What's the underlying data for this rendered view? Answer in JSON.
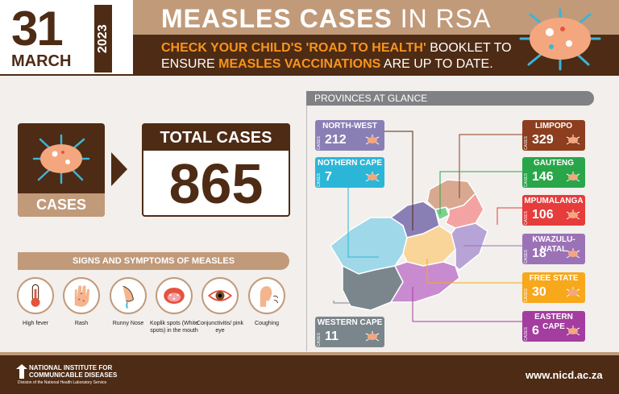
{
  "header": {
    "day": "31",
    "month": "MARCH",
    "year": "2023",
    "title_bold": "MEASLES CASES",
    "title_light": "IN RSA",
    "sub_line1_a": "CHECK YOUR CHILD'S 'ROAD TO HEALTH'",
    "sub_line1_b": " BOOKLET TO",
    "sub_line2_a": "ENSURE ",
    "sub_line2_b": "MEASLES VACCINATIONS",
    "sub_line2_c": " ARE UP TO DATE."
  },
  "cases": {
    "label": "CASES",
    "total_label": "TOTAL CASES",
    "total_value": "865"
  },
  "symptoms": {
    "title": "SIGNS AND SYMPTOMS OF MEASLES",
    "items": [
      {
        "label": "High fever",
        "icon": "thermometer-icon"
      },
      {
        "label": "Rash",
        "icon": "hand-rash-icon"
      },
      {
        "label": "Runny Nose",
        "icon": "nose-icon"
      },
      {
        "label": "Koplik spots (White spots) in the mouth",
        "icon": "mouth-icon"
      },
      {
        "label": "Conjunctivitis/ pink eye",
        "icon": "eye-icon"
      },
      {
        "label": "Coughing",
        "icon": "coughing-icon"
      }
    ]
  },
  "provinces": {
    "title": "PROVINCES AT GLANCE",
    "cases_word": "CASES",
    "items": [
      {
        "name": "NORTH-WEST",
        "count": "212",
        "color": "#8a7fb5"
      },
      {
        "name": "NOTHERN CAPE",
        "count": "7",
        "color": "#2bb6d8"
      },
      {
        "name": "WESTERN CAPE",
        "count": "11",
        "color": "#7a868c"
      },
      {
        "name": "LIMPOPO",
        "count": "329",
        "color": "#8c3e1e"
      },
      {
        "name": "GAUTENG",
        "count": "146",
        "color": "#2aa64a"
      },
      {
        "name": "MPUMALANGA",
        "count": "106",
        "color": "#e63c3c"
      },
      {
        "name": "KWAZULU-NATAL",
        "count": "18",
        "color": "#9b72b6"
      },
      {
        "name": "FREE STATE",
        "count": "30",
        "color": "#f7a81b"
      },
      {
        "name": "EASTERN CAPE",
        "count": "6",
        "color": "#a43da0"
      }
    ]
  },
  "footer": {
    "org_line1": "NATIONAL INSTITUTE FOR",
    "org_line2": "COMMUNICABLE DISEASES",
    "org_line3": "Division of the National Health Laboratory Service",
    "url": "www.nicd.ac.za"
  },
  "colors": {
    "brown": "#4e2b14",
    "tan": "#c19a7a",
    "orange": "#f7941d"
  }
}
